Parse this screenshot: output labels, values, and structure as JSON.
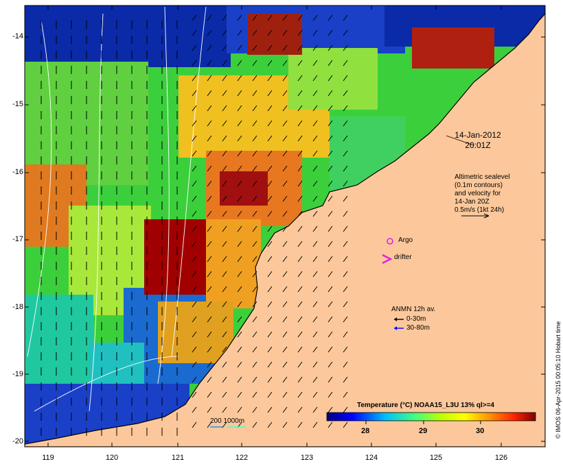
{
  "map": {
    "y_ticks": [
      "-14",
      "-15",
      "-16",
      "-17",
      "-18",
      "-19",
      "-20"
    ],
    "x_ticks": [
      "119",
      "120",
      "121",
      "122",
      "123",
      "124",
      "125",
      "126"
    ],
    "date_line1": "14-Jan-2012",
    "date_line2": "20:01Z",
    "alti_line1": "Altimetric sealevel",
    "alti_line2": "(0.1m contours)",
    "alti_line3": "and velocity for",
    "alti_line4": "14-Jan 20Z",
    "alti_line5": "0.5m/s (1kt 24h)",
    "argo_label": "Argo",
    "drifter_label": "drifter",
    "anmn_title": "ANMN 12h av.",
    "anmn_shallow": "0-30m",
    "anmn_deep": "30-80m",
    "scale_label": "200  1000m",
    "colorbar_title": "Temperature (°C) NOAA15_L3U 13% ql>=4",
    "colorbar_ticks": [
      "28",
      "29",
      "30"
    ],
    "credit": "© IMOS 06-Apr-2015 00:05:10 Hobart time",
    "colors": {
      "land": "#fcc89b",
      "argo": "#e020e0",
      "drifter": "#e020e0",
      "anmn_shallow": "#000000",
      "anmn_deep": "#0000ff"
    }
  }
}
